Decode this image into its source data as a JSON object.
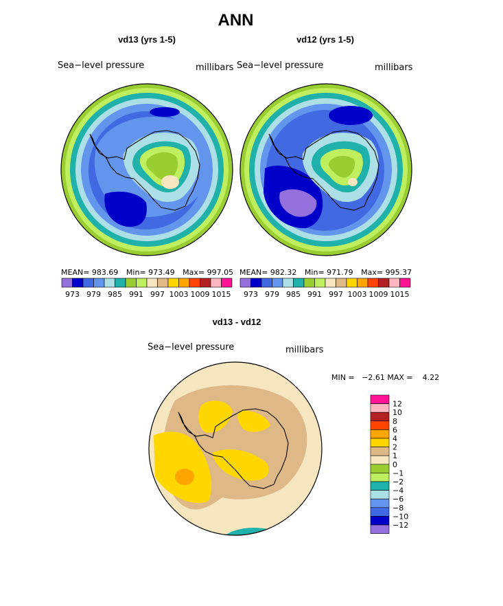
{
  "figure": {
    "title": "ANN",
    "palette_colors": [
      "#9370DB",
      "#0000C8",
      "#4169E1",
      "#6495ED",
      "#ADDFE6",
      "#20B2AA",
      "#9ACD32",
      "#BFEF5F",
      "#F5E6C0",
      "#DEB887",
      "#FFD700",
      "#FFA500",
      "#FF4500",
      "#B22222",
      "#FFB6C1",
      "#FF1493"
    ]
  },
  "panels": [
    {
      "title": "vd13 (yrs 1-5)",
      "variable": "Sea−level pressure",
      "units": "millibars",
      "stats": {
        "mean_label": "MEAN=",
        "mean": "983.69",
        "min_label": "Min=",
        "min": "973.49",
        "max_label": "Max=",
        "max": "997.05"
      },
      "colorbar_ticks": [
        "973",
        "979",
        "985",
        "991",
        "997",
        "1003",
        "1009",
        "1015"
      ]
    },
    {
      "title": "vd12 (yrs 1-5)",
      "variable": "Sea−level pressure",
      "units": "millibars",
      "stats": {
        "mean_label": "MEAN=",
        "mean": "982.32",
        "min_label": "Min=",
        "min": "971.79",
        "max_label": "Max=",
        "max": "995.37"
      },
      "colorbar_ticks": [
        "973",
        "979",
        "985",
        "991",
        "997",
        "1003",
        "1009",
        "1015"
      ]
    }
  ],
  "difference": {
    "title": "vd13 - vd12",
    "variable": "Sea−level pressure",
    "units": "millibars",
    "stats_text": "MIN =   −2.61 MAX =    4.22",
    "legend_labels": [
      "12",
      "10",
      "8",
      "6",
      "4",
      "2",
      "1",
      "0",
      "−1",
      "−2",
      "−4",
      "−6",
      "−8",
      "−10",
      "−12"
    ],
    "legend_colors": [
      "#FF1493",
      "#FFB6C1",
      "#B22222",
      "#FF4500",
      "#FFA500",
      "#FFD700",
      "#DEB887",
      "#F5E6C0",
      "#9ACD32",
      "#BFEF5F",
      "#20B2AA",
      "#ADDFE6",
      "#6495ED",
      "#4169E1",
      "#0000C8",
      "#9370DB"
    ]
  },
  "chart_data": [
    {
      "type": "heatmap",
      "title": "vd13 (yrs 1-5)",
      "field": "Sea−level pressure",
      "units": "millibars",
      "mean": 983.69,
      "min": 973.49,
      "max": 997.05,
      "levels": [
        973,
        976,
        979,
        982,
        985,
        988,
        991,
        994,
        997,
        1000,
        1003,
        1006,
        1009,
        1012,
        1015
      ]
    },
    {
      "type": "heatmap",
      "title": "vd12 (yrs 1-5)",
      "field": "Sea−level pressure",
      "units": "millibars",
      "mean": 982.32,
      "min": 971.79,
      "max": 995.37,
      "levels": [
        973,
        976,
        979,
        982,
        985,
        988,
        991,
        994,
        997,
        1000,
        1003,
        1006,
        1009,
        1012,
        1015
      ]
    },
    {
      "type": "heatmap",
      "title": "vd13 - vd12",
      "field": "Sea−level pressure",
      "units": "millibars",
      "min": -2.61,
      "max": 4.22,
      "levels": [
        -12,
        -10,
        -8,
        -6,
        -4,
        -2,
        -1,
        0,
        1,
        2,
        4,
        6,
        8,
        10,
        12
      ]
    }
  ]
}
